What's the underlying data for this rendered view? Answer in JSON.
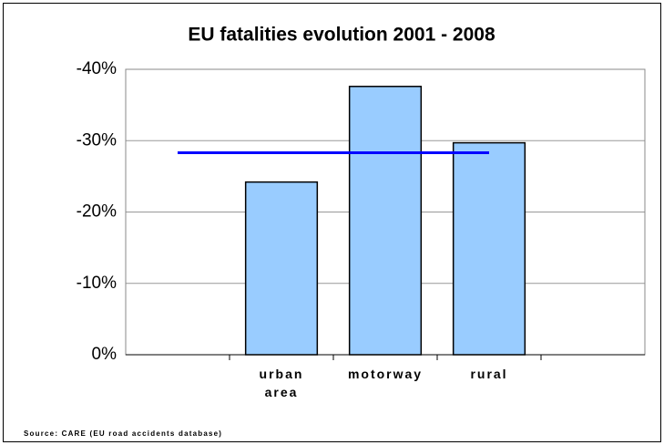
{
  "chart_data": {
    "type": "bar",
    "title": "EU fatalities evolution 2001 - 2008",
    "categories": [
      null,
      "urban area",
      "motorway",
      "rural",
      null
    ],
    "series": [
      {
        "type": "bar",
        "color": "#99ccff",
        "values": [
          null,
          -24.2,
          -37.6,
          -29.7,
          null
        ]
      },
      {
        "type": "line",
        "color": "#0000ff",
        "values": [
          -28.3,
          -28.3,
          -28.3,
          -28.3,
          null
        ]
      }
    ],
    "ylim": [
      0,
      -40
    ],
    "yticks": [
      {
        "value": 0,
        "label": "0%"
      },
      {
        "value": -10,
        "label": "-10%"
      },
      {
        "value": -20,
        "label": "-20%"
      },
      {
        "value": -30,
        "label": "-30%"
      },
      {
        "value": -40,
        "label": "-40%"
      }
    ],
    "grid": true,
    "source": "Source: CARE (EU road accidents database)"
  }
}
